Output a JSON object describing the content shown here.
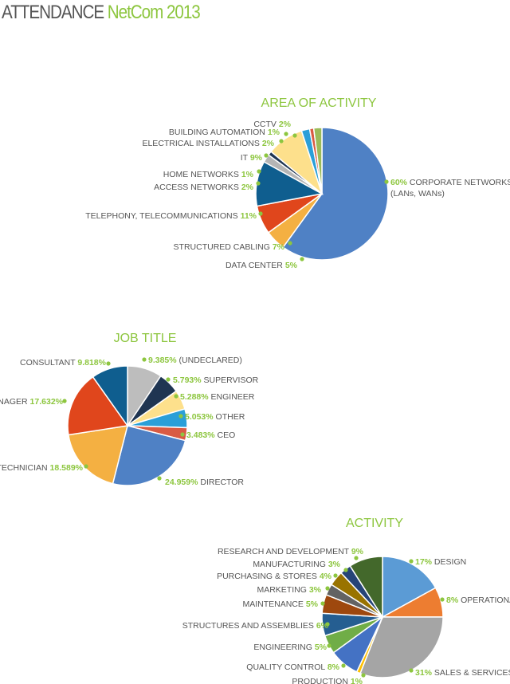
{
  "header": {
    "title_part1": "ATTENDANCE",
    "title_part2": "NetCom 2013"
  },
  "colors": {
    "value_green": "#8dc63f",
    "label_gray": "#555555",
    "leader_green": "#8dc63f"
  },
  "chart_data": [
    {
      "type": "pie",
      "title": "AREA OF ACTIVITY",
      "slices": [
        {
          "label": "CORPORATE NETWORKS",
          "label2": "(LANs, WANs)",
          "value_text": "60%",
          "value": 60,
          "color": "#4f81c5"
        },
        {
          "label": "DATA CENTER",
          "value_text": "5%",
          "value": 5,
          "color": "#f4b042"
        },
        {
          "label": "STRUCTURED CABLING",
          "value_text": "7%",
          "value": 7,
          "color": "#e0461c"
        },
        {
          "label": "TELEPHONY, TELECOMMUNICATIONS",
          "value_text": "11%",
          "value": 11,
          "color": "#0f5e8f"
        },
        {
          "label": "ACCESS NETWORKS",
          "value_text": "2%",
          "value": 2,
          "color": "#b5b5b5"
        },
        {
          "label": "HOME NETWORKS",
          "value_text": "1%",
          "value": 1,
          "color": "#1f3552"
        },
        {
          "label": "IT",
          "value_text": "9%",
          "value": 9,
          "color": "#fde08c"
        },
        {
          "label": "ELECTRICAL INSTALLATIONS",
          "value_text": "2%",
          "value": 2,
          "color": "#2a9fd8"
        },
        {
          "label": "BUILDING AUTOMATION",
          "value_text": "1%",
          "value": 1,
          "color": "#d95b43"
        },
        {
          "label": "CCTV",
          "value_text": "2%",
          "value": 2,
          "color": "#9bbb59"
        }
      ]
    },
    {
      "type": "pie",
      "title": "JOB TITLE",
      "slices": [
        {
          "label": "(UNDECLARED)",
          "value_text": "9.385%",
          "value": 9.385,
          "color": "#bdbdbd"
        },
        {
          "label": "SUPERVISOR",
          "value_text": "5.793%",
          "value": 5.793,
          "color": "#1f3552"
        },
        {
          "label": "ENGINEER",
          "value_text": "5.288%",
          "value": 5.288,
          "color": "#fde08c"
        },
        {
          "label": "OTHER",
          "value_text": "5.053%",
          "value": 5.053,
          "color": "#2a9fd8"
        },
        {
          "label": "CEO",
          "value_text": "3.483%",
          "value": 3.483,
          "color": "#d95b43"
        },
        {
          "label": "DIRECTOR",
          "value_text": "24.959%",
          "value": 24.959,
          "color": "#4f81c5"
        },
        {
          "label": "TECHNICIAN",
          "value_text": "18.589%",
          "value": 18.589,
          "color": "#f4b042"
        },
        {
          "label": "MANAGER",
          "value_text": "17.632%",
          "value": 17.632,
          "color": "#e0461c"
        },
        {
          "label": "CONSULTANT",
          "value_text": "9.818%",
          "value": 9.818,
          "color": "#0f5e8f"
        }
      ]
    },
    {
      "type": "pie",
      "title": "ACTIVITY",
      "slices": [
        {
          "label": "DESIGN",
          "value_text": "17%",
          "value": 17,
          "color": "#5b9bd5"
        },
        {
          "label": "OPERATIONAL",
          "value_text": "8%",
          "value": 8,
          "color": "#ed7d31"
        },
        {
          "label": "SALES & SERVICES",
          "value_text": "31%",
          "value": 31,
          "color": "#a5a5a5"
        },
        {
          "label": "PRODUCTION",
          "value_text": "1%",
          "value": 1,
          "color": "#ffc000"
        },
        {
          "label": "QUALITY CONTROL",
          "value_text": "8%",
          "value": 8,
          "color": "#4472c4"
        },
        {
          "label": "ENGINEERING",
          "value_text": "5%",
          "value": 5,
          "color": "#70ad47"
        },
        {
          "label": "STRUCTURES AND ASSEMBLIES",
          "value_text": "6%",
          "value": 6,
          "color": "#255e91"
        },
        {
          "label": "MAINTENANCE",
          "value_text": "5%",
          "value": 5,
          "color": "#9e480e"
        },
        {
          "label": "MARKETING",
          "value_text": "3%",
          "value": 3,
          "color": "#636363"
        },
        {
          "label": "PURCHASING & STORES",
          "value_text": "4%",
          "value": 4,
          "color": "#997300"
        },
        {
          "label": "MANUFACTURING",
          "value_text": "3%",
          "value": 3,
          "color": "#264478"
        },
        {
          "label": "RESEARCH AND DEVELOPMENT",
          "value_text": "9%",
          "value": 9,
          "color": "#43682b"
        }
      ]
    }
  ]
}
